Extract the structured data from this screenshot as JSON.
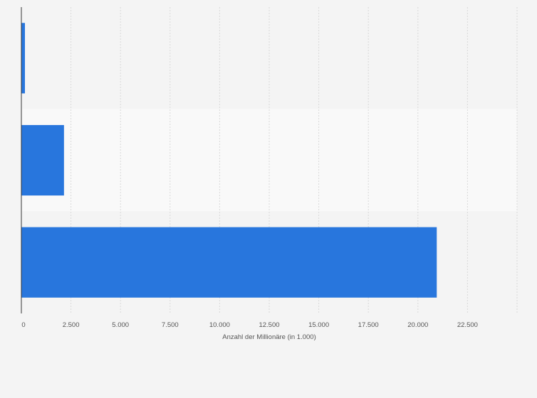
{
  "chart_data": {
    "type": "bar",
    "orientation": "horizontal",
    "categories": [
      "",
      "",
      ""
    ],
    "values": [
      180,
      2150,
      20950
    ],
    "title": "",
    "xlabel": "Anzahl der Millionäre (in 1.000)",
    "ylabel": "",
    "xlim": [
      0,
      25000
    ],
    "x_ticks": [
      0,
      2500,
      5000,
      7500,
      10000,
      12500,
      15000,
      17500,
      20000,
      22500
    ],
    "x_tick_labels": [
      "0",
      "2.500",
      "5.000",
      "7.500",
      "10.000",
      "12.500",
      "15.000",
      "17.500",
      "20.000",
      "22.500"
    ],
    "grid": "vertical dashed",
    "legend": "none",
    "colors": {
      "bar": "#2876dd",
      "background": "#f4f4f4",
      "band_alt": "#f9f9f9",
      "grid": "#d9d9d9",
      "axis": "#333333",
      "text": "#555555"
    }
  }
}
